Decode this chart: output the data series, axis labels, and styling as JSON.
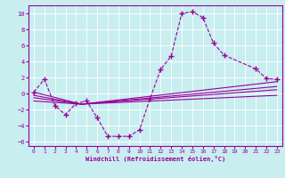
{
  "xlabel": "Windchill (Refroidissement éolien,°C)",
  "xlim": [
    -0.5,
    23.5
  ],
  "ylim": [
    -6.5,
    11
  ],
  "xticks": [
    0,
    1,
    2,
    3,
    4,
    5,
    6,
    7,
    8,
    9,
    10,
    11,
    12,
    13,
    14,
    15,
    16,
    17,
    18,
    19,
    20,
    21,
    22,
    23
  ],
  "yticks": [
    -6,
    -4,
    -2,
    0,
    2,
    4,
    6,
    8,
    10
  ],
  "bg_color": "#c8eef0",
  "line_color": "#990099",
  "grid_color": "#ffffff",
  "data_line_x": [
    0,
    1,
    2,
    3,
    4,
    5,
    6,
    7,
    8,
    9,
    10,
    11,
    12,
    13,
    14,
    15,
    16,
    17,
    18,
    21,
    22,
    23
  ],
  "data_line_y": [
    0.2,
    1.8,
    -1.5,
    -2.6,
    -1.2,
    -0.9,
    -3.0,
    -5.3,
    -5.3,
    -5.3,
    -4.5,
    -0.6,
    3.0,
    4.7,
    10.0,
    10.2,
    9.5,
    6.3,
    4.8,
    3.1,
    1.9,
    1.8
  ],
  "trend_lines": [
    {
      "x": [
        0,
        4.5,
        23
      ],
      "y": [
        0.2,
        -1.3,
        1.5
      ]
    },
    {
      "x": [
        0,
        4.5,
        23
      ],
      "y": [
        -0.2,
        -1.3,
        0.9
      ]
    },
    {
      "x": [
        0,
        4.5,
        23
      ],
      "y": [
        -0.5,
        -1.3,
        0.5
      ]
    },
    {
      "x": [
        0,
        4.5,
        23
      ],
      "y": [
        -0.9,
        -1.3,
        -0.2
      ]
    }
  ]
}
